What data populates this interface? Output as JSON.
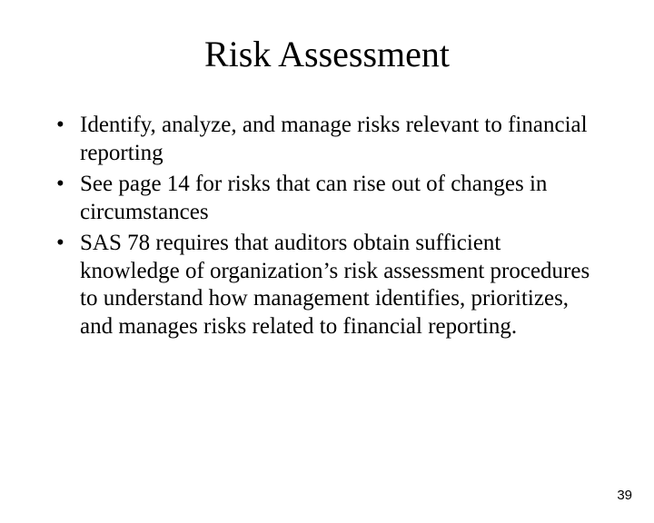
{
  "slide": {
    "title": "Risk Assessment",
    "bullets": [
      "Identify, analyze, and manage risks relevant to financial reporting",
      "See page 14 for risks that can rise out of changes in circumstances",
      "SAS 78 requires that auditors obtain sufficient knowledge of organization’s risk assessment procedures to understand how management identifies, prioritizes, and manages risks related to financial reporting."
    ],
    "page_number": "39"
  },
  "style": {
    "background_color": "#ffffff",
    "text_color": "#000000",
    "title_fontsize": 40,
    "body_fontsize": 25,
    "pagenum_fontsize": 15,
    "font_family": "Times New Roman"
  }
}
